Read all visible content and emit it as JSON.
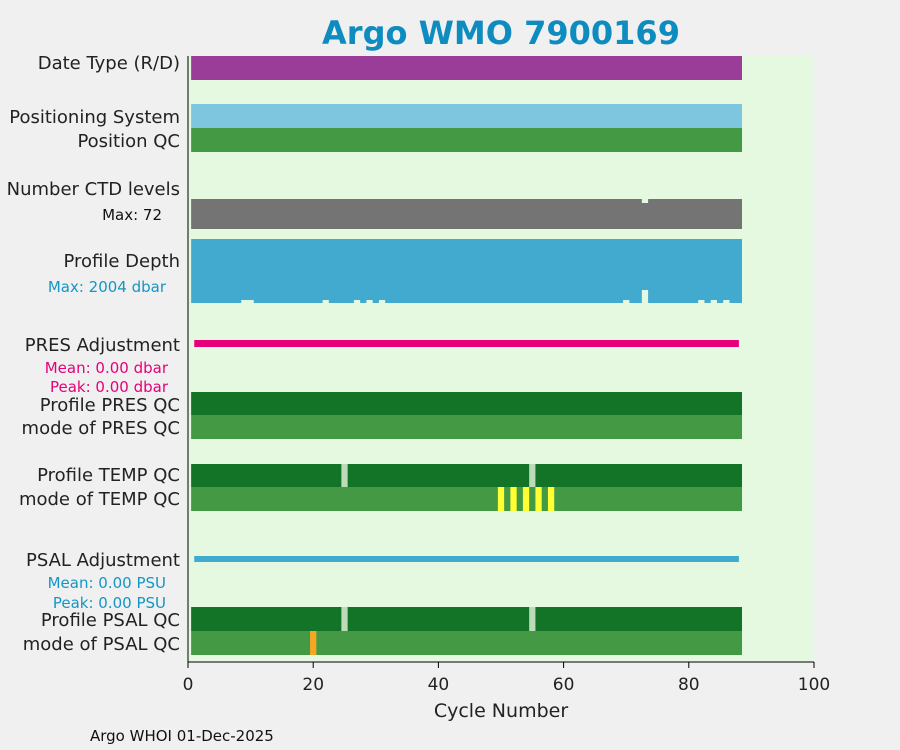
{
  "chart_data": {
    "type": "bar",
    "title": "Argo WMO 7900169",
    "xlabel": "Cycle Number",
    "xlim": [
      0,
      100
    ],
    "xticks": [
      0,
      20,
      40,
      60,
      80,
      100
    ],
    "xtick_labels": [
      "0",
      "20",
      "40",
      "60",
      "80",
      "100"
    ],
    "cycle_range": [
      0.5,
      88.5
    ],
    "footer": "Argo WHOI 01-Dec-2025",
    "colors": {
      "plot_bg": "#e5f9e0",
      "figure_bg": "#f0f0f0",
      "title": "#0f8cbf",
      "magenta": "#e6007a",
      "cyan": "#1496c4"
    },
    "rows": [
      {
        "label": "Date Type (R/D)",
        "color": "#993d99"
      },
      {
        "label": "Positioning System",
        "color": "#7ec5df"
      },
      {
        "label": "Position QC",
        "color": "#449a44"
      },
      {
        "label": "Number CTD levels",
        "sublabel": "Max: 72",
        "color": "#747474",
        "missing_cycles": [
          73
        ]
      },
      {
        "label": "Profile Depth",
        "sublabel": "Max: 2004 dbar",
        "color": "#43aacf",
        "max_dbar": 2004,
        "shallow_cycles": [
          9,
          10,
          22,
          27,
          29,
          31,
          70,
          73,
          82,
          84,
          86
        ]
      },
      {
        "label": "PRES Adjustment",
        "mean": "Mean: 0.00 dbar",
        "peak": "Peak: 0.00 dbar",
        "color": "#e6007a"
      },
      {
        "label": "Profile PRES QC",
        "color": "#137327"
      },
      {
        "label": "mode of PRES QC",
        "color": "#449a44"
      },
      {
        "label": "Profile TEMP QC",
        "color": "#137327",
        "flag_cycles": [
          25,
          55
        ],
        "flag_color": "#bedbb9"
      },
      {
        "label": "mode of TEMP QC",
        "color": "#449a44",
        "flag_cycles": [
          50,
          52,
          54,
          56,
          58
        ],
        "flag_color": "#ffff33"
      },
      {
        "label": "PSAL Adjustment",
        "mean": "Mean: 0.00 PSU",
        "peak": "Peak: 0.00 PSU",
        "color": "#43aacf"
      },
      {
        "label": "Profile PSAL QC",
        "color": "#137327",
        "flag_cycles": [
          25,
          55
        ],
        "flag_color": "#bedbb9"
      },
      {
        "label": "mode of PSAL QC",
        "color": "#449a44",
        "flag_cycles": [
          20
        ],
        "flag_color": "#f5a623"
      }
    ]
  }
}
